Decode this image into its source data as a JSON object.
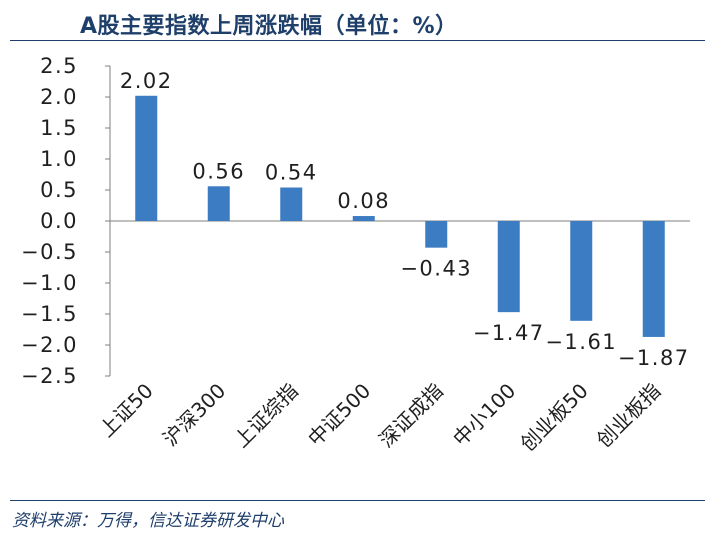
{
  "title": "A股主要指数上周涨跌幅（单位：%）",
  "source": "资料来源：万得，信达证券研发中心",
  "colors": {
    "bar": "#3b7cc3",
    "axis": "#7f7f7f",
    "text": "#1f1f1f",
    "title": "#1f3f6b"
  },
  "chart_data": {
    "type": "bar",
    "title": "A股主要指数上周涨跌幅（单位：%）",
    "xlabel": "",
    "ylabel": "",
    "categories": [
      "上证50",
      "沪深300",
      "上证综指",
      "中证500",
      "深证成指",
      "中小100",
      "创业板50",
      "创业板指"
    ],
    "values": [
      2.02,
      0.56,
      0.54,
      0.08,
      -0.43,
      -1.47,
      -1.61,
      -1.87
    ],
    "data_labels": [
      "2.02",
      "0.56",
      "0.54",
      "0.08",
      "−0.43",
      "−1.47",
      "−1.61",
      "−1.87"
    ],
    "ylim": [
      -2.5,
      2.5
    ],
    "yticks": [
      2.5,
      2.0,
      1.5,
      1.0,
      0.5,
      0.0,
      -0.5,
      -1.0,
      -1.5,
      -2.0,
      -2.5
    ],
    "ytick_labels": [
      "2.5",
      "2.0",
      "1.5",
      "1.0",
      "0.5",
      "0.0",
      "−0.5",
      "−1.0",
      "−1.5",
      "−2.0",
      "−2.5"
    ],
    "grid": false,
    "legend": "none"
  }
}
